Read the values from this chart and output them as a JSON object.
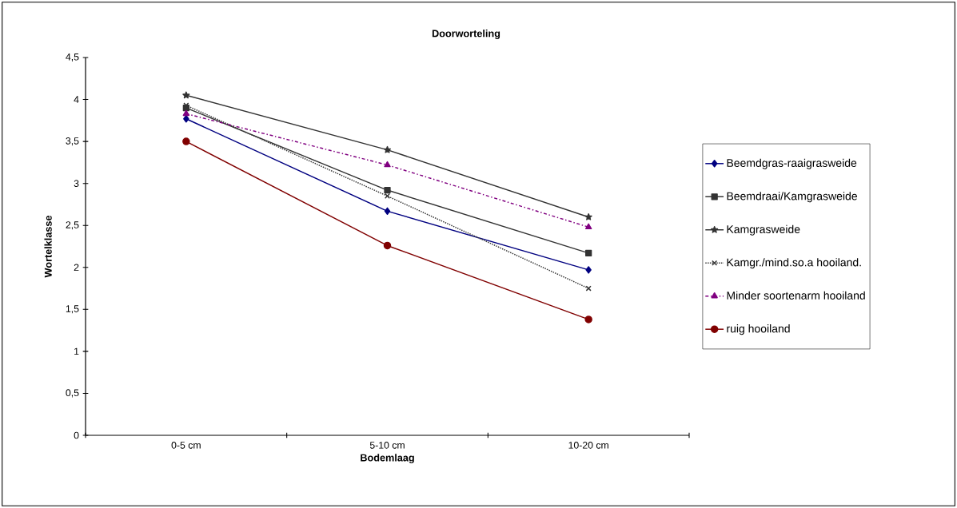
{
  "chart_data": {
    "type": "line",
    "title": "Doorworteling",
    "xlabel": "Bodemlaag",
    "ylabel": "Wortelklasse",
    "categories": [
      "0-5 cm",
      "5-10 cm",
      "10-20 cm"
    ],
    "series": [
      {
        "name": "Beemdgras-raaigrasweide",
        "color": "#000080",
        "marker": "diamond",
        "line_style": "solid",
        "values": [
          3.77,
          2.67,
          1.97
        ]
      },
      {
        "name": "Beemdraai/Kamgrasweide",
        "color": "#333333",
        "marker": "square",
        "line_style": "solid",
        "values": [
          3.9,
          2.92,
          2.17
        ]
      },
      {
        "name": "Kamgrasweide",
        "color": "#333333",
        "marker": "star",
        "line_style": "solid",
        "values": [
          4.05,
          3.4,
          2.6
        ]
      },
      {
        "name": "Kamgr./mind.so.a hooiland.",
        "color": "#333333",
        "marker": "cross",
        "line_style": "dotted",
        "values": [
          3.93,
          2.85,
          1.75
        ]
      },
      {
        "name": "Minder soortenarm hooiland",
        "color": "#800080",
        "marker": "triangle",
        "line_style": "dashed",
        "values": [
          3.83,
          3.22,
          2.48
        ]
      },
      {
        "name": "ruig hooiland",
        "color": "#800000",
        "marker": "circle",
        "line_style": "solid",
        "values": [
          3.5,
          2.26,
          1.38
        ]
      }
    ],
    "ylim": [
      0,
      4.5
    ],
    "yticks": [
      0,
      {
        "value": 0.5,
        "label": "0,5"
      },
      1,
      {
        "value": 1.5,
        "label": "1,5"
      },
      2,
      {
        "value": 2.5,
        "label": "2,5"
      },
      3,
      {
        "value": 3.5,
        "label": "3,5"
      },
      4,
      {
        "value": 4.5,
        "label": "4,5"
      }
    ],
    "grid": false,
    "legend": "right"
  }
}
